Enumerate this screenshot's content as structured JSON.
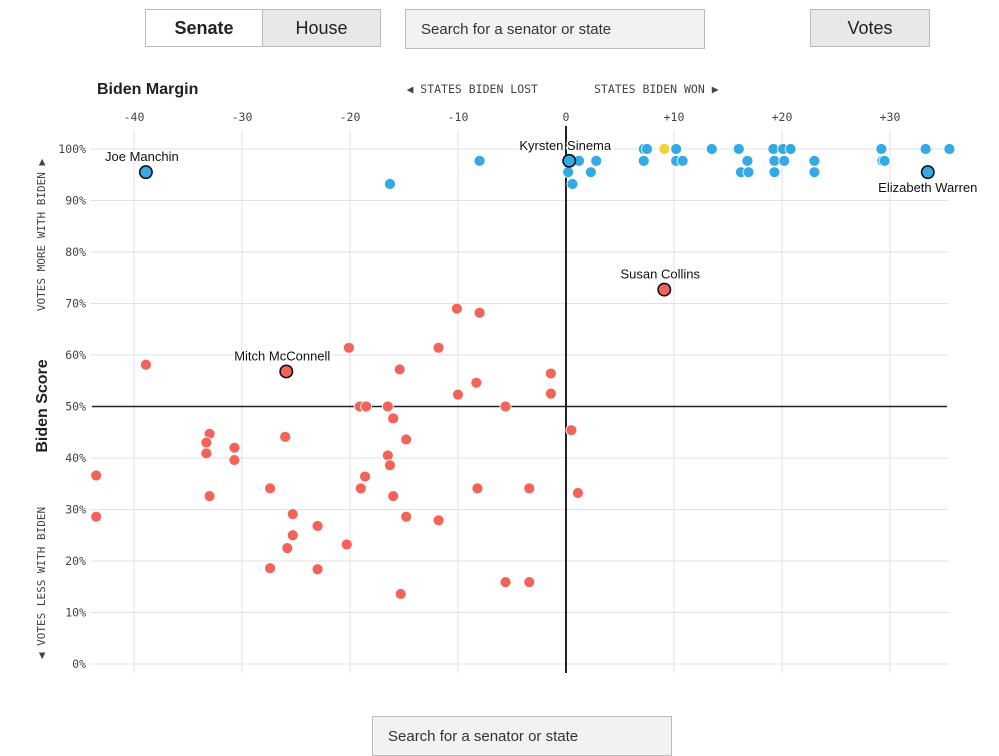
{
  "controls": {
    "chamber_tabs": [
      {
        "label": "Senate",
        "active": true
      },
      {
        "label": "House",
        "active": false
      }
    ],
    "search_top_placeholder": "Search for a senator or state",
    "votes_label": "Votes",
    "search_bottom_placeholder": "Search for a senator or state"
  },
  "colors": {
    "democrat": "#33a9e6",
    "republican": "#f2645a",
    "independent": "#f2d13a",
    "axis": "#222222",
    "grid": "#e2e2e2"
  },
  "chart_data": {
    "type": "scatter",
    "xlabel": "Biden Margin",
    "ylabel": "Biden Score",
    "x_direction_left": "◀ STATES BIDEN LOST",
    "x_direction_right": "STATES BIDEN WON ▶",
    "y_direction_top": "VOTES MORE WITH BIDEN ▶",
    "y_direction_bottom": "◀ VOTES LESS WITH BIDEN",
    "xlim": [
      -43.5,
      35.5
    ],
    "ylim": [
      0,
      100
    ],
    "x_ticks": [
      {
        "value": -40,
        "label": "-40"
      },
      {
        "value": -30,
        "label": "-30"
      },
      {
        "value": -20,
        "label": "-20"
      },
      {
        "value": -10,
        "label": "-10"
      },
      {
        "value": 0,
        "label": "0"
      },
      {
        "value": 10,
        "label": "+10"
      },
      {
        "value": 20,
        "label": "+20"
      },
      {
        "value": 30,
        "label": "+30"
      }
    ],
    "y_ticks": [
      {
        "value": 0,
        "label": "0%"
      },
      {
        "value": 10,
        "label": "10%"
      },
      {
        "value": 20,
        "label": "20%"
      },
      {
        "value": 30,
        "label": "30%"
      },
      {
        "value": 40,
        "label": "40%"
      },
      {
        "value": 50,
        "label": "50%"
      },
      {
        "value": 60,
        "label": "60%"
      },
      {
        "value": 70,
        "label": "70%"
      },
      {
        "value": 80,
        "label": "80%"
      },
      {
        "value": 90,
        "label": "90%"
      },
      {
        "value": 100,
        "label": "100%"
      }
    ],
    "highlighted": [
      {
        "name": "Joe Manchin",
        "x": -38.9,
        "y": 95.5,
        "party": "D",
        "label_pos": "above"
      },
      {
        "name": "Kyrsten Sinema",
        "x": 0.3,
        "y": 97.7,
        "party": "D",
        "label_pos": "above"
      },
      {
        "name": "Elizabeth Warren",
        "x": 33.5,
        "y": 95.5,
        "party": "D",
        "label_pos": "below"
      },
      {
        "name": "Susan Collins",
        "x": 9.1,
        "y": 72.7,
        "party": "R",
        "label_pos": "above"
      },
      {
        "name": "Mitch McConnell",
        "x": -25.9,
        "y": 56.8,
        "party": "R",
        "label_pos": "above"
      }
    ],
    "series": [
      {
        "name": "Democrats",
        "points": [
          [
            -8.0,
            97.7
          ],
          [
            -16.3,
            93.2
          ],
          [
            0.3,
            97.7
          ],
          [
            1.2,
            97.7
          ],
          [
            2.8,
            97.7
          ],
          [
            0.2,
            95.5
          ],
          [
            2.3,
            95.5
          ],
          [
            0.6,
            93.2
          ],
          [
            7.2,
            100
          ],
          [
            7.5,
            100
          ],
          [
            10.2,
            100
          ],
          [
            13.5,
            100
          ],
          [
            16.0,
            100
          ],
          [
            19.2,
            100
          ],
          [
            20.1,
            100
          ],
          [
            20.8,
            100
          ],
          [
            29.2,
            100
          ],
          [
            33.3,
            100
          ],
          [
            35.5,
            100
          ],
          [
            7.2,
            97.7
          ],
          [
            10.2,
            97.7
          ],
          [
            10.8,
            97.7
          ],
          [
            16.8,
            97.7
          ],
          [
            19.3,
            97.7
          ],
          [
            20.2,
            97.7
          ],
          [
            23.0,
            97.7
          ],
          [
            29.3,
            97.7
          ],
          [
            29.5,
            97.7
          ],
          [
            16.2,
            95.5
          ],
          [
            16.9,
            95.5
          ],
          [
            19.3,
            95.5
          ],
          [
            23.0,
            95.5
          ]
        ]
      },
      {
        "name": "Independents",
        "points": [
          [
            9.1,
            100
          ]
        ]
      },
      {
        "name": "Republicans",
        "points": [
          [
            -10.1,
            69.0
          ],
          [
            -8.0,
            68.2
          ],
          [
            -20.1,
            61.4
          ],
          [
            -11.8,
            61.4
          ],
          [
            -38.9,
            58.1
          ],
          [
            -15.4,
            57.2
          ],
          [
            -1.4,
            56.4
          ],
          [
            -8.3,
            54.6
          ],
          [
            -10.0,
            52.3
          ],
          [
            -1.4,
            52.5
          ],
          [
            -19.1,
            50.0
          ],
          [
            -18.5,
            50.0
          ],
          [
            -16.5,
            50.0
          ],
          [
            -5.6,
            50.0
          ],
          [
            -16.0,
            47.7
          ],
          [
            0.5,
            45.4
          ],
          [
            -33.0,
            44.7
          ],
          [
            -26.0,
            44.1
          ],
          [
            -14.8,
            43.6
          ],
          [
            -33.3,
            43.0
          ],
          [
            -30.7,
            42.0
          ],
          [
            -33.3,
            40.9
          ],
          [
            -16.5,
            40.5
          ],
          [
            -30.7,
            39.6
          ],
          [
            -16.3,
            38.6
          ],
          [
            -43.5,
            36.6
          ],
          [
            -18.6,
            36.4
          ],
          [
            -27.4,
            34.1
          ],
          [
            -19.0,
            34.1
          ],
          [
            -8.2,
            34.1
          ],
          [
            -3.4,
            34.1
          ],
          [
            1.1,
            33.2
          ],
          [
            -33.0,
            32.6
          ],
          [
            -16.0,
            32.6
          ],
          [
            -25.3,
            29.1
          ],
          [
            -43.5,
            28.6
          ],
          [
            -14.8,
            28.6
          ],
          [
            -11.8,
            27.9
          ],
          [
            -23.0,
            26.8
          ],
          [
            -25.3,
            25.0
          ],
          [
            -20.3,
            23.2
          ],
          [
            -25.8,
            22.5
          ],
          [
            -27.4,
            18.6
          ],
          [
            -23.0,
            18.4
          ],
          [
            -5.6,
            15.9
          ],
          [
            -3.4,
            15.9
          ],
          [
            -15.3,
            13.6
          ]
        ]
      }
    ]
  }
}
